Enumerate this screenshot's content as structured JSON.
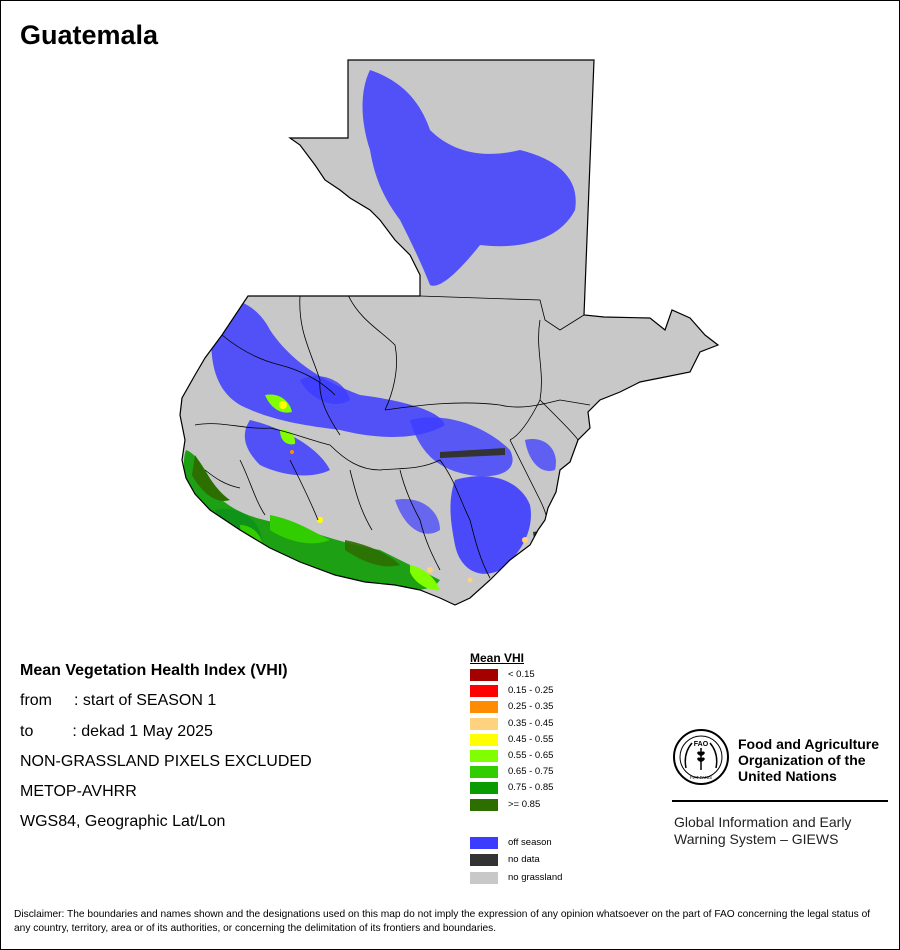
{
  "map": {
    "title": "Guatemala"
  },
  "info": {
    "heading": "Mean Vegetation Health Index (VHI)",
    "from_label": "from",
    "from_value": ": start of SEASON 1",
    "to_label": "to",
    "to_value": ": dekad 1 May 2025",
    "note": "NON-GRASSLAND PIXELS EXCLUDED",
    "sensor": "METOP-AVHRR",
    "projection": "WGS84, Geographic Lat/Lon"
  },
  "legend": {
    "title": "Mean VHI",
    "classes": [
      {
        "label": "< 0.15",
        "color": "#a50000"
      },
      {
        "label": "0.15 - 0.25",
        "color": "#ff0000"
      },
      {
        "label": "0.25 - 0.35",
        "color": "#ff8c00"
      },
      {
        "label": "0.35 - 0.45",
        "color": "#ffd27f"
      },
      {
        "label": "0.45 - 0.55",
        "color": "#ffff00"
      },
      {
        "label": "0.55 - 0.65",
        "color": "#80ff00"
      },
      {
        "label": "0.65 - 0.75",
        "color": "#32cd00"
      },
      {
        "label": "0.75 - 0.85",
        "color": "#0a9b00"
      },
      {
        "label": ">= 0.85",
        "color": "#2d6e00"
      }
    ],
    "special": [
      {
        "label": "off season",
        "color": "#3c3cff"
      },
      {
        "label": "no data",
        "color": "#333333"
      },
      {
        "label": "no grassland",
        "color": "#c8c8c8"
      }
    ]
  },
  "colors": {
    "country_fill": "#c8c8c8",
    "border": "#000000",
    "off_season": "#3c3cff"
  },
  "org": {
    "logo_text": "FAO",
    "logo_motto": "FIAT PANIS",
    "name_line1": "Food and Agriculture",
    "name_line2": "Organization of the",
    "name_line3": "United Nations",
    "system_line1": "Global Information and Early",
    "system_line2": "Warning System – GIEWS"
  },
  "disclaimer": "Disclaimer: The boundaries and names shown and the designations used on this map do not imply the expression of any opinion whatsoever on the part of FAO concerning the legal status of any country, territory, area or of its authorities, or concerning the delimitation of its frontiers and boundaries."
}
